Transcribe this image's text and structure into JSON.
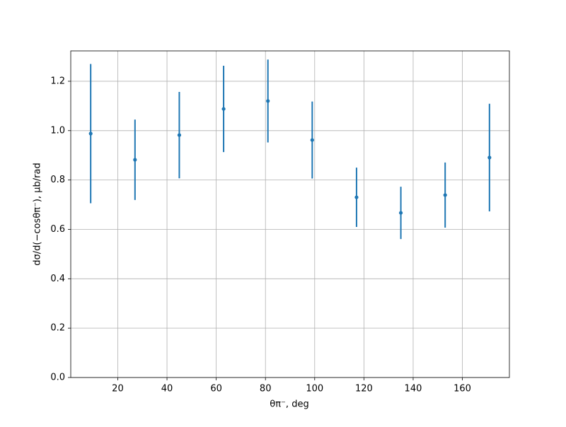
{
  "chart_data": {
    "type": "errorbar",
    "x_label": "θπ⁻, deg",
    "y_label": "dσ/d(−cosθπ⁻), μb/rad",
    "x": [
      9,
      27,
      45,
      63,
      81,
      99,
      117,
      135,
      153,
      171
    ],
    "series": [
      {
        "color": "#1f77b4",
        "values": [
          0.988,
          0.882,
          0.982,
          1.088,
          1.12,
          0.962,
          0.73,
          0.667,
          0.739,
          0.891
        ],
        "errors": [
          0.282,
          0.163,
          0.175,
          0.175,
          0.168,
          0.156,
          0.12,
          0.106,
          0.132,
          0.218
        ]
      }
    ],
    "xlim": [
      0.9,
      179.1
    ],
    "ylim": [
      0,
      1.323
    ],
    "xticks": [
      20,
      40,
      60,
      80,
      100,
      120,
      140,
      160
    ],
    "yticks": [
      {
        "value": 0,
        "label": "0.0"
      },
      {
        "value": 0.2,
        "label": "0.2"
      },
      {
        "value": 0.4,
        "label": "0.4"
      },
      {
        "value": 0.6,
        "label": "0.6"
      },
      {
        "value": 0.8,
        "label": "0.8"
      },
      {
        "value": 1.0,
        "label": "1.0"
      },
      {
        "value": 1.2,
        "label": "1.2"
      }
    ],
    "grid": true
  }
}
